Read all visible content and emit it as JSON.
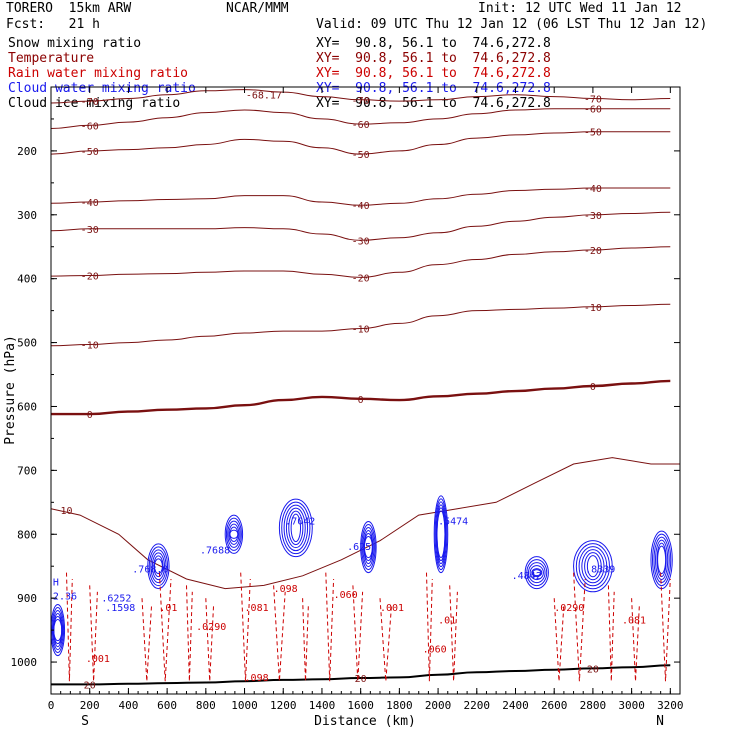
{
  "header": {
    "model": "TORERO  15km ARW",
    "center": "NCAR/MMM",
    "init": "Init: 12 UTC Wed 11 Jan 12",
    "fcst": "Fcst:   21 h",
    "valid": "Valid: 09 UTC Thu 12 Jan 12 (06 LST Thu 12 Jan 12)"
  },
  "legend": [
    {
      "label": "Snow mixing ratio",
      "xy": "XY=  90.8, 56.1 to  74.6,272.8",
      "color": "#000000"
    },
    {
      "label": "Temperature",
      "xy": "XY=  90.8, 56.1 to  74.6,272.8",
      "color": "#8b0000"
    },
    {
      "label": "Rain water mixing ratio",
      "xy": "XY=  90.8, 56.1 to  74.6,272.8",
      "color": "#cc0000"
    },
    {
      "label": "Cloud water mixing ratio",
      "xy": "XY=  90.8, 56.1 to  74.6,272.8",
      "color": "#1a1aee"
    },
    {
      "label": "Cloud ice mixing ratio",
      "xy": "XY=  90.8, 56.1 to  74.6,272.8",
      "color": "#000000"
    }
  ],
  "chart_data": {
    "type": "cross-section contour",
    "xlabel": "Distance (km)",
    "ylabel": "Pressure (hPa)",
    "xlim": [
      0,
      3250
    ],
    "ylim": [
      1050,
      100
    ],
    "xticks": [
      "0",
      "200",
      "400",
      "600",
      "800",
      "1000",
      "1200",
      "1400",
      "1600",
      "1800",
      "2000",
      "2200",
      "2400",
      "2600",
      "2800",
      "3000",
      "3200"
    ],
    "yticks": [
      "200",
      "300",
      "400",
      "500",
      "600",
      "700",
      "800",
      "900",
      "1000"
    ],
    "left_end_label": "S",
    "right_end_label": "N",
    "temperature_contours": [
      {
        "value": -70,
        "p": [
          125,
          122,
          118,
          112,
          106,
          104,
          108,
          115,
          120,
          122,
          120,
          115,
          112,
          115,
          118,
          120,
          118
        ]
      },
      {
        "value": -60,
        "p": [
          165,
          160,
          155,
          148,
          140,
          136,
          140,
          150,
          158,
          156,
          150,
          142,
          136,
          134,
          134,
          134,
          134
        ]
      },
      {
        "value": -50,
        "p": [
          205,
          200,
          198,
          195,
          190,
          182,
          185,
          195,
          205,
          200,
          190,
          180,
          175,
          172,
          170,
          170,
          170
        ]
      },
      {
        "value": -40,
        "p": [
          282,
          280,
          278,
          276,
          275,
          270,
          270,
          280,
          285,
          282,
          275,
          268,
          262,
          260,
          258,
          258,
          258
        ]
      },
      {
        "value": -30,
        "p": [
          325,
          322,
          322,
          322,
          322,
          320,
          322,
          330,
          340,
          336,
          328,
          318,
          310,
          304,
          300,
          298,
          296
        ]
      },
      {
        "value": -20,
        "p": [
          396,
          395,
          393,
          392,
          390,
          388,
          388,
          393,
          398,
          390,
          378,
          370,
          362,
          358,
          355,
          352,
          350
        ]
      },
      {
        "value": -10,
        "p": [
          505,
          503,
          500,
          496,
          490,
          485,
          482,
          482,
          478,
          470,
          458,
          450,
          448,
          446,
          444,
          442,
          440
        ]
      },
      {
        "value": 0,
        "p": [
          612,
          612,
          608,
          605,
          603,
          598,
          590,
          585,
          588,
          590,
          584,
          580,
          576,
          572,
          568,
          564,
          560
        ]
      },
      {
        "value": 20,
        "p": [
          1035,
          1035,
          1034,
          1033,
          1032,
          1030,
          1028,
          1027,
          1025,
          1024,
          1020,
          1016,
          1014,
          1012,
          1010,
          1008,
          1005
        ]
      }
    ],
    "contour_labels": [
      "-68.17",
      "-70",
      "-60",
      "-50",
      "-40",
      "-30",
      "-20",
      "-10",
      "0",
      "10",
      "20"
    ],
    "cloud_water_labels": [
      ".6252",
      ".768.0",
      ".7688",
      ".7042",
      ".625",
      ".5474",
      ".4842",
      ".8339",
      ".1598"
    ],
    "rain_labels": [
      ".001",
      ".01",
      ".0290",
      ".081",
      ".098",
      ".060"
    ],
    "high_marker": "H",
    "side_value": "2.36"
  }
}
